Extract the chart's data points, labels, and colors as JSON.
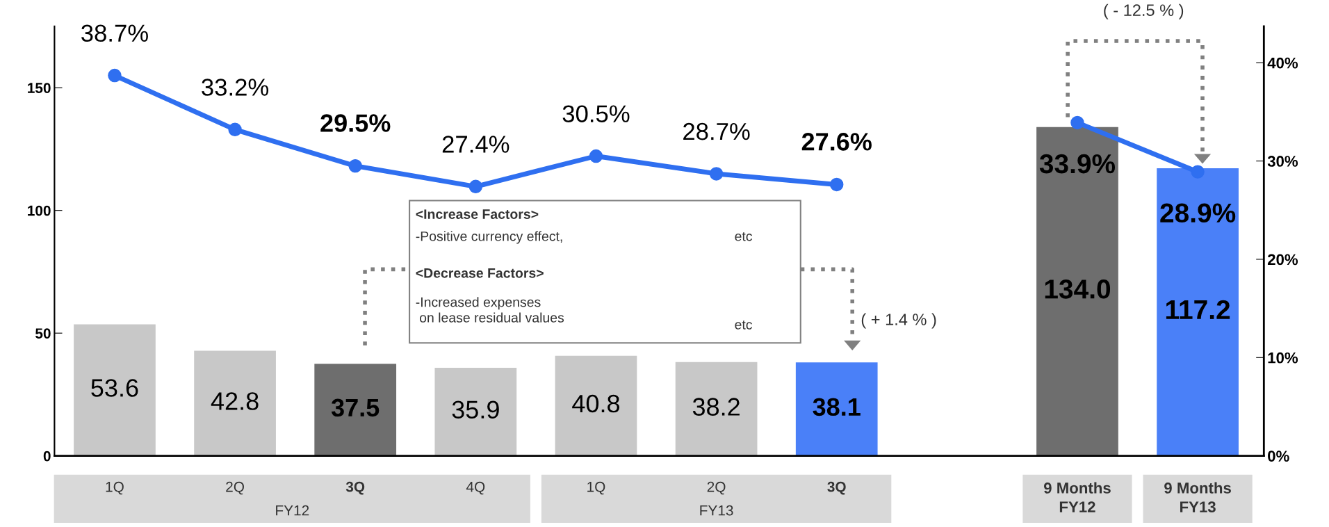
{
  "chart_data": {
    "type": "bar",
    "categories": [
      "1Q",
      "2Q",
      "3Q",
      "4Q",
      "1Q",
      "2Q",
      "3Q",
      null,
      "9 Months\nFY12",
      "9 Months\nFY13"
    ],
    "values": [
      53.6,
      42.8,
      37.5,
      35.9,
      40.8,
      38.2,
      38.1,
      null,
      134.0,
      117.2
    ],
    "colors": [
      "#c8c8c8",
      "#c8c8c8",
      "#6e6e6e",
      "#c8c8c8",
      "#c8c8c8",
      "#c8c8c8",
      "#4a80f8",
      "#ffffff",
      "#6e6e6e",
      "#4a80f8"
    ],
    "value_labels": [
      "53.6",
      "42.8",
      "37.5",
      "35.9",
      "40.8",
      "38.2",
      "38.1",
      null,
      "134.0",
      "117.2"
    ],
    "series": [
      {
        "type": "line",
        "axis": "y2",
        "color": "#2f6ff0",
        "marker": "circle",
        "line_style": "solid",
        "values": [
          38.7,
          33.2,
          29.5,
          27.4,
          30.5,
          28.7,
          27.6,
          null,
          33.9,
          28.9
        ],
        "value_labels": [
          "38.7%",
          "33.2%",
          "29.5%",
          "27.4%",
          "30.5%",
          "28.7%",
          "27.6%",
          null,
          "33.9%",
          "28.9%"
        ]
      }
    ],
    "ylim": [
      0,
      175
    ],
    "yticks": [
      0,
      50,
      100,
      150
    ],
    "y2lim": [
      0,
      43.7
    ],
    "y2ticks": [
      {
        "value": 0,
        "label": "0%"
      },
      {
        "value": 10,
        "label": "10%"
      },
      {
        "value": 20,
        "label": "20%"
      },
      {
        "value": 30,
        "label": "30%"
      },
      {
        "value": 40,
        "label": "40%"
      }
    ],
    "grid": false,
    "annotations": [
      "<Increase Factors>",
      "-Positive currency effect,",
      "etc",
      "<Decrease Factors>",
      "-Increased expenses\n on lease residual values",
      "etc",
      "( + 1.4 % )",
      "( - 12.5 % )",
      "FY12",
      "FY13"
    ]
  }
}
